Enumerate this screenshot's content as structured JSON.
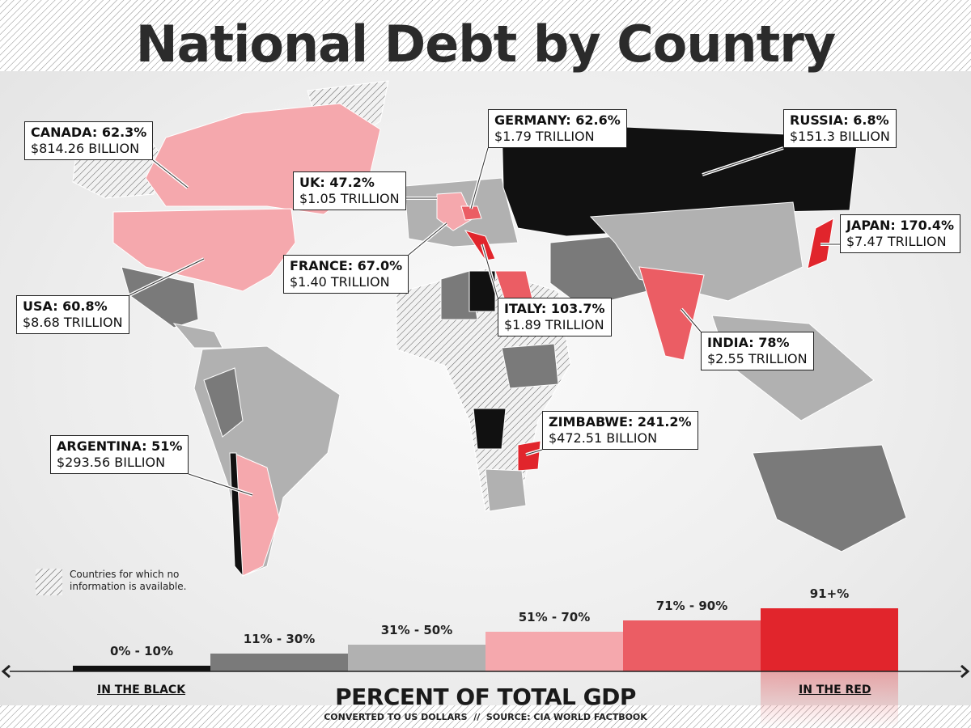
{
  "title": "National Debt by Country",
  "callouts": [
    {
      "heading": "CANADA: 62.3%",
      "amount": "$814.26 BILLION"
    },
    {
      "heading": "UK: 47.2%",
      "amount": "$1.05 TRILLION"
    },
    {
      "heading": "GERMANY: 62.6%",
      "amount": "$1.79 TRILLION"
    },
    {
      "heading": "RUSSIA: 6.8%",
      "amount": "$151.3 BILLION"
    },
    {
      "heading": "JAPAN: 170.4%",
      "amount": "$7.47 TRILLION"
    },
    {
      "heading": "FRANCE: 67.0%",
      "amount": "$1.40 TRILLION"
    },
    {
      "heading": "USA: 60.8%",
      "amount": "$8.68 TRILLION"
    },
    {
      "heading": "ITALY: 103.7%",
      "amount": "$1.89 TRILLION"
    },
    {
      "heading": "INDIA: 78%",
      "amount": "$2.55 TRILLION"
    },
    {
      "heading": "ZIMBABWE: 241.2%",
      "amount": "$472.51 BILLION"
    },
    {
      "heading": "ARGENTINA: 51%",
      "amount": "$293.56 BILLION"
    }
  ],
  "note": "Countries for which no information is available.",
  "legend": {
    "items": [
      {
        "label": "0% - 10%",
        "color": "#111111"
      },
      {
        "label": "11% - 30%",
        "color": "#7a7a7a"
      },
      {
        "label": "31% - 50%",
        "color": "#b1b1b1"
      },
      {
        "label": "51% - 70%",
        "color": "#f5a8ad"
      },
      {
        "label": "71% - 90%",
        "color": "#eb5d64"
      },
      {
        "label": "91+%",
        "color": "#e1252c"
      }
    ],
    "left_label": "IN THE BLACK",
    "right_label": "IN THE RED",
    "axis_title": "PERCENT OF TOTAL GDP",
    "source": "CONVERTED TO US DOLLARS  //  SOURCE: CIA WORLD FACTBOOK"
  }
}
